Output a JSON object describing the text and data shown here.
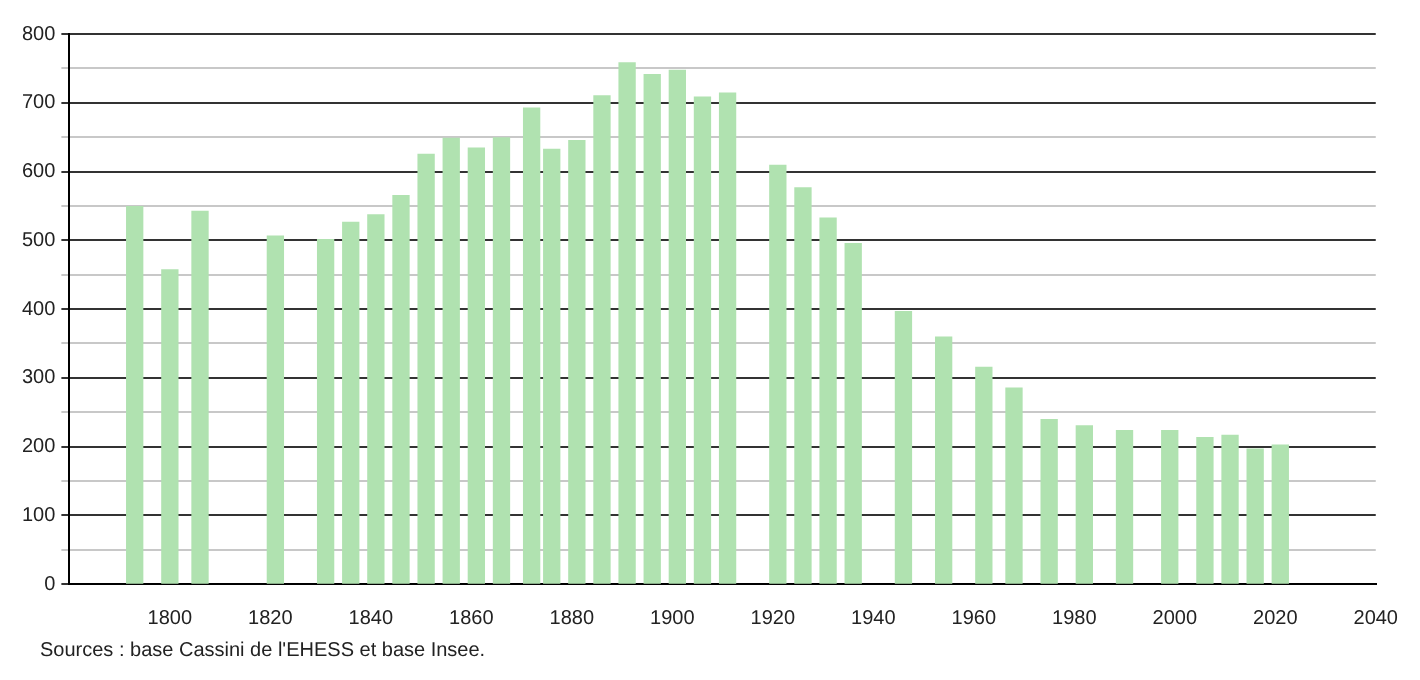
{
  "chart_data": {
    "type": "bar",
    "x": [
      1793,
      1800,
      1806,
      1821,
      1831,
      1836,
      1841,
      1846,
      1851,
      1856,
      1861,
      1866,
      1872,
      1876,
      1881,
      1886,
      1891,
      1896,
      1901,
      1906,
      1911,
      1921,
      1926,
      1931,
      1936,
      1946,
      1954,
      1962,
      1968,
      1975,
      1982,
      1990,
      1999,
      2006,
      2011,
      2016,
      2021
    ],
    "values": [
      549,
      457,
      542,
      506,
      501,
      526,
      537,
      565,
      625,
      648,
      634,
      649,
      692,
      632,
      645,
      710,
      758,
      741,
      747,
      708,
      714,
      609,
      576,
      532,
      495,
      396,
      359,
      315,
      285,
      239,
      230,
      223,
      223,
      213,
      216,
      196,
      202
    ],
    "color": "#b0e2b0",
    "xlim": [
      1780,
      2040
    ],
    "xticks": [
      1800,
      1820,
      1840,
      1860,
      1880,
      1900,
      1920,
      1940,
      1960,
      1980,
      2000,
      2020,
      2040
    ],
    "ylim": [
      0,
      800
    ],
    "yticks": [
      0,
      {
        "value": 50,
        "label": null
      },
      100,
      {
        "value": 150,
        "label": null
      },
      200,
      {
        "value": 250,
        "label": null
      },
      300,
      {
        "value": 350,
        "label": null
      },
      400,
      {
        "value": 450,
        "label": null
      },
      500,
      {
        "value": 550,
        "label": null
      },
      600,
      {
        "value": 650,
        "label": null
      },
      700,
      {
        "value": 750,
        "label": null
      },
      800
    ],
    "grid": "y",
    "legend": false,
    "annotations": [
      "Sources : base Cassini de l'EHESS et base Insee."
    ]
  }
}
